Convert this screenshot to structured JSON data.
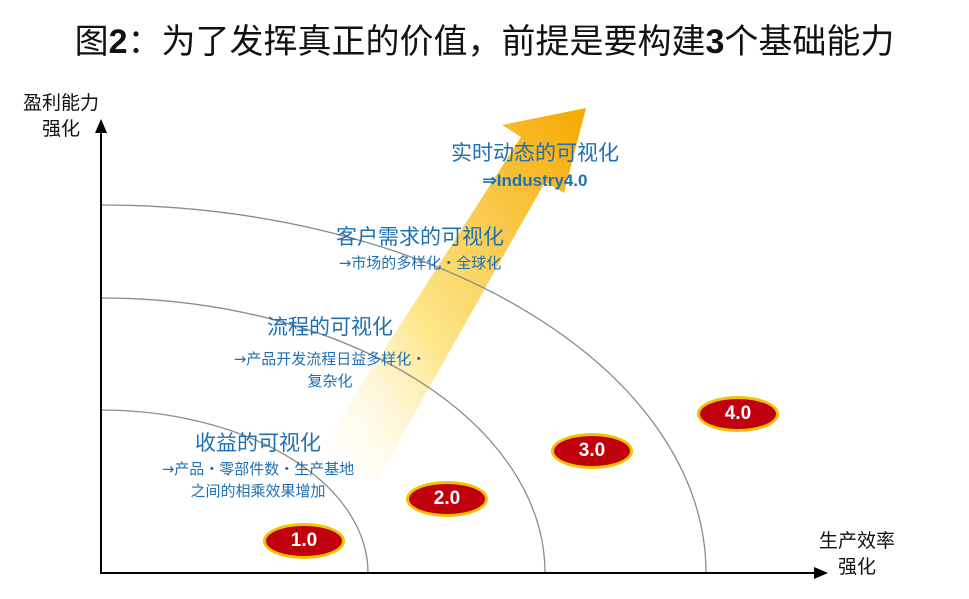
{
  "title": {
    "prefix": "图",
    "num": "2",
    "text": "：为了发挥真正的价值，前提是要构建",
    "num2": "3",
    "suffix": "个基础能力"
  },
  "axes": {
    "y_line1": "盈利能力",
    "y_line2": "强化",
    "x_line1": "生产效率",
    "x_line2": "强化"
  },
  "levels": [
    {
      "heading": "收益的可视化",
      "lines": [
        "→产品・零部件数・生产基地",
        "之间的相乘效果增加"
      ],
      "badge": "1.0"
    },
    {
      "heading": "流程的可视化",
      "lines": [
        "→产品开发流程日益多样化・",
        "复杂化"
      ],
      "badge": "2.0"
    },
    {
      "heading": "客户需求的可视化",
      "lines": [
        "→市场的多样化・全球化"
      ],
      "badge": "3.0"
    },
    {
      "heading": "实时动态的可视化",
      "lines": [
        "⇒Industry4.0"
      ],
      "badge": "4.0"
    }
  ],
  "colors": {
    "text_blue": "#1f6fb4",
    "badge_red": "#c0000c",
    "badge_border": "#f0c200",
    "arrow_orange": "#f5a800",
    "arrow_yellow": "#fde68a"
  }
}
